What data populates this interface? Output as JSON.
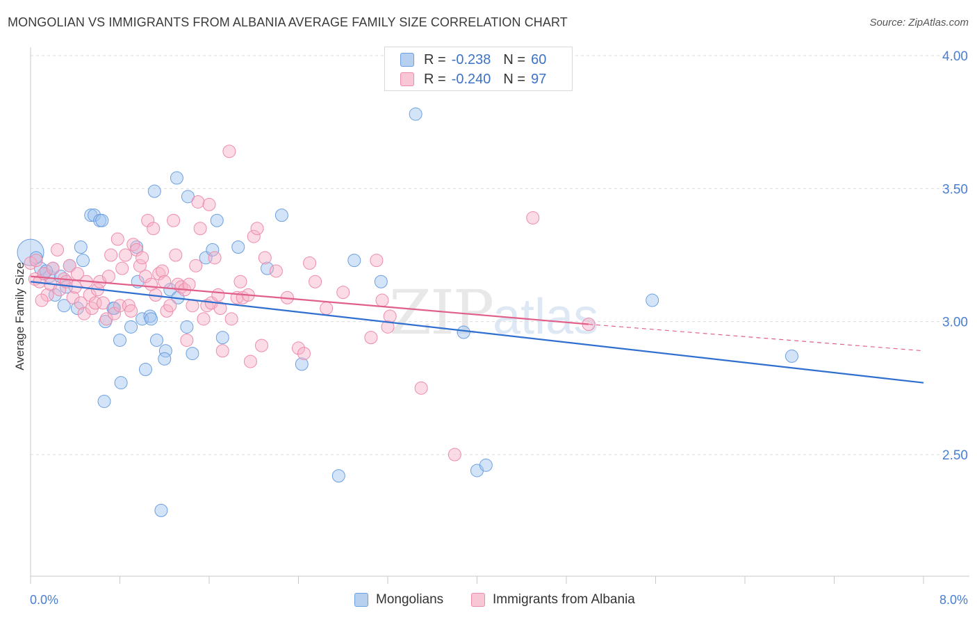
{
  "title": "MONGOLIAN VS IMMIGRANTS FROM ALBANIA AVERAGE FAMILY SIZE CORRELATION CHART",
  "source": "Source: ZipAtlas.com",
  "watermark": {
    "zip": "ZIP",
    "atlas": "atlas"
  },
  "legend": {
    "r_label": "R =",
    "n_label": "N =",
    "rows": [
      {
        "r": "-0.238",
        "n": "60",
        "fill": "#b8d0f0",
        "border": "#6b9fe0"
      },
      {
        "r": "-0.240",
        "n": "97",
        "fill": "#f9c6d6",
        "border": "#ee8aaa"
      }
    ]
  },
  "bottom_legend": {
    "items": [
      {
        "label": "Mongolians",
        "fill": "#b8d0f0",
        "border": "#6b9fe0"
      },
      {
        "label": "Immigrants from Albania",
        "fill": "#f9c6d6",
        "border": "#ee8aaa"
      }
    ]
  },
  "chart_data": {
    "type": "scatter",
    "title": "MONGOLIAN VS IMMIGRANTS FROM ALBANIA AVERAGE FAMILY SIZE CORRELATION CHART",
    "xlabel": "",
    "ylabel": "Average Family Size",
    "x_tick_labels": {
      "min": "0.0%",
      "max": "8.0%"
    },
    "y_tick_labels": [
      "4.00",
      "3.50",
      "3.00",
      "2.50"
    ],
    "y_ticks": [
      4.0,
      3.5,
      3.0,
      2.5
    ],
    "xlim": [
      0.0,
      8.0
    ],
    "ylim": [
      2.0,
      4.07
    ],
    "grid": "horizontal dashed",
    "series": [
      {
        "name": "Mongolians",
        "color": "#6b9fe0",
        "fill": "rgba(160,195,240,0.45)",
        "line_color": "#2f6fd0",
        "trend": {
          "x0": 0.0,
          "y0": 3.15,
          "x1": 8.0,
          "y1": 2.77
        },
        "points": [
          [
            0.0,
            3.26
          ],
          [
            0.05,
            3.24
          ],
          [
            0.12,
            3.18
          ],
          [
            0.17,
            3.17
          ],
          [
            0.2,
            3.2
          ],
          [
            0.22,
            3.1
          ],
          [
            0.27,
            3.17
          ],
          [
            0.3,
            3.06
          ],
          [
            0.32,
            3.13
          ],
          [
            0.35,
            3.21
          ],
          [
            0.45,
            3.28
          ],
          [
            0.47,
            3.23
          ],
          [
            0.42,
            3.05
          ],
          [
            0.54,
            3.4
          ],
          [
            0.57,
            3.4
          ],
          [
            0.62,
            3.38
          ],
          [
            0.64,
            3.38
          ],
          [
            0.67,
            3.0
          ],
          [
            0.74,
            3.05
          ],
          [
            0.66,
            2.7
          ],
          [
            0.8,
            2.93
          ],
          [
            0.81,
            2.77
          ],
          [
            0.75,
            3.05
          ],
          [
            0.9,
            2.98
          ],
          [
            0.95,
            3.28
          ],
          [
            0.96,
            3.15
          ],
          [
            1.0,
            3.01
          ],
          [
            1.03,
            2.82
          ],
          [
            1.07,
            3.02
          ],
          [
            1.11,
            3.49
          ],
          [
            1.13,
            2.93
          ],
          [
            1.17,
            2.29
          ],
          [
            1.21,
            2.89
          ],
          [
            1.2,
            2.86
          ],
          [
            1.25,
            3.12
          ],
          [
            1.32,
            3.09
          ],
          [
            1.31,
            3.54
          ],
          [
            1.41,
            3.47
          ],
          [
            1.4,
            2.98
          ],
          [
            1.45,
            2.88
          ],
          [
            1.57,
            3.24
          ],
          [
            1.63,
            3.27
          ],
          [
            1.67,
            3.38
          ],
          [
            1.72,
            2.94
          ],
          [
            1.86,
            3.28
          ],
          [
            2.12,
            3.2
          ],
          [
            2.25,
            3.4
          ],
          [
            2.43,
            2.84
          ],
          [
            2.76,
            2.42
          ],
          [
            2.9,
            3.23
          ],
          [
            3.14,
            3.15
          ],
          [
            3.45,
            3.78
          ],
          [
            3.88,
            2.96
          ],
          [
            4.0,
            2.44
          ],
          [
            4.08,
            2.46
          ],
          [
            5.57,
            3.08
          ],
          [
            6.82,
            2.87
          ],
          [
            0.09,
            3.2
          ],
          [
            0.14,
            3.19
          ],
          [
            1.08,
            3.01
          ]
        ]
      },
      {
        "name": "Immigrants from Albania",
        "color": "#ee8aaa",
        "fill": "rgba(246,178,200,0.45)",
        "line_color": "#e0608a",
        "trend": {
          "x0": 0.0,
          "y0": 3.17,
          "x1": 5.0,
          "y1": 2.99
        },
        "trend_dashed": {
          "x0": 5.0,
          "y0": 2.99,
          "x1": 8.0,
          "y1": 2.89
        },
        "points": [
          [
            0.0,
            3.22
          ],
          [
            0.04,
            3.16
          ],
          [
            0.05,
            3.23
          ],
          [
            0.08,
            3.15
          ],
          [
            0.12,
            3.18
          ],
          [
            0.15,
            3.1
          ],
          [
            0.18,
            3.14
          ],
          [
            0.2,
            3.2
          ],
          [
            0.24,
            3.27
          ],
          [
            0.26,
            3.12
          ],
          [
            0.3,
            3.16
          ],
          [
            0.32,
            3.15
          ],
          [
            0.35,
            3.21
          ],
          [
            0.38,
            3.09
          ],
          [
            0.4,
            3.13
          ],
          [
            0.42,
            3.18
          ],
          [
            0.45,
            3.07
          ],
          [
            0.48,
            3.03
          ],
          [
            0.5,
            3.15
          ],
          [
            0.53,
            3.1
          ],
          [
            0.55,
            3.05
          ],
          [
            0.58,
            3.07
          ],
          [
            0.6,
            3.12
          ],
          [
            0.62,
            3.15
          ],
          [
            0.65,
            3.07
          ],
          [
            0.68,
            3.01
          ],
          [
            0.7,
            3.17
          ],
          [
            0.72,
            3.25
          ],
          [
            0.75,
            3.03
          ],
          [
            0.78,
            3.31
          ],
          [
            0.8,
            3.06
          ],
          [
            0.82,
            3.2
          ],
          [
            0.85,
            3.25
          ],
          [
            0.88,
            3.06
          ],
          [
            0.9,
            3.04
          ],
          [
            0.92,
            3.29
          ],
          [
            0.95,
            3.27
          ],
          [
            0.98,
            3.21
          ],
          [
            1.0,
            3.24
          ],
          [
            1.03,
            3.17
          ],
          [
            1.05,
            3.38
          ],
          [
            1.08,
            3.14
          ],
          [
            1.1,
            3.35
          ],
          [
            1.12,
            3.1
          ],
          [
            1.15,
            3.18
          ],
          [
            1.18,
            3.19
          ],
          [
            1.2,
            3.15
          ],
          [
            1.22,
            3.04
          ],
          [
            1.25,
            3.06
          ],
          [
            1.28,
            3.38
          ],
          [
            1.3,
            3.25
          ],
          [
            1.32,
            3.14
          ],
          [
            1.35,
            3.13
          ],
          [
            1.38,
            3.12
          ],
          [
            1.4,
            2.93
          ],
          [
            1.42,
            3.14
          ],
          [
            1.45,
            3.06
          ],
          [
            1.48,
            3.21
          ],
          [
            1.5,
            3.45
          ],
          [
            1.52,
            3.35
          ],
          [
            1.55,
            3.01
          ],
          [
            1.58,
            3.06
          ],
          [
            1.6,
            3.44
          ],
          [
            1.62,
            3.07
          ],
          [
            1.65,
            3.24
          ],
          [
            1.68,
            3.1
          ],
          [
            1.7,
            3.05
          ],
          [
            1.72,
            2.89
          ],
          [
            1.78,
            3.64
          ],
          [
            1.8,
            3.01
          ],
          [
            1.85,
            3.09
          ],
          [
            1.88,
            3.15
          ],
          [
            1.9,
            3.09
          ],
          [
            1.95,
            3.1
          ],
          [
            1.97,
            2.85
          ],
          [
            2.0,
            3.32
          ],
          [
            2.03,
            3.35
          ],
          [
            2.07,
            2.91
          ],
          [
            2.1,
            3.24
          ],
          [
            2.2,
            3.19
          ],
          [
            2.3,
            3.09
          ],
          [
            2.4,
            2.9
          ],
          [
            2.45,
            2.88
          ],
          [
            2.5,
            3.22
          ],
          [
            2.55,
            3.15
          ],
          [
            2.65,
            3.05
          ],
          [
            2.8,
            3.11
          ],
          [
            3.05,
            2.94
          ],
          [
            3.1,
            3.23
          ],
          [
            3.15,
            3.08
          ],
          [
            3.2,
            2.98
          ],
          [
            3.22,
            3.02
          ],
          [
            3.5,
            2.75
          ],
          [
            3.8,
            2.5
          ],
          [
            4.5,
            3.39
          ],
          [
            5.0,
            2.99
          ],
          [
            0.1,
            3.08
          ]
        ]
      }
    ]
  }
}
